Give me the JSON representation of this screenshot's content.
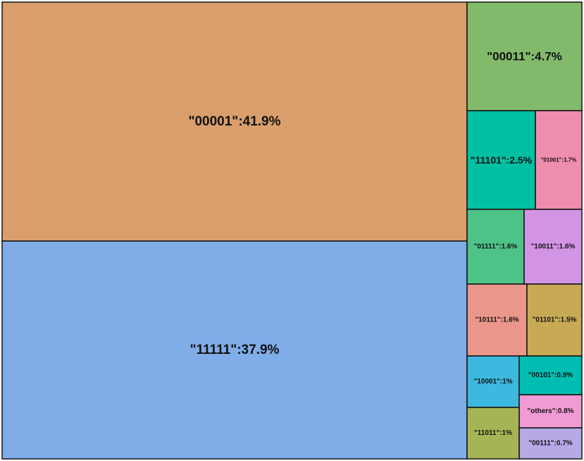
{
  "chart_data": {
    "type": "treemap",
    "items": [
      {
        "label": "\"00001\":41.9%",
        "value": 41.9,
        "color": "#D99E6C"
      },
      {
        "label": "\"11111\":37.9%",
        "value": 37.9,
        "color": "#80ACE8"
      },
      {
        "label": "\"00011\":4.7%",
        "value": 4.7,
        "color": "#82BA6C"
      },
      {
        "label": "\"11101\":2.5%",
        "value": 2.5,
        "color": "#00C0A3"
      },
      {
        "label": "\"01001\":1.7%",
        "value": 1.7,
        "color": "#EF8DAD"
      },
      {
        "label": "\"01111\":1.6%",
        "value": 1.6,
        "color": "#4DC388"
      },
      {
        "label": "\"10011\":1.6%",
        "value": 1.6,
        "color": "#D294E4"
      },
      {
        "label": "\"10111\":1.6%",
        "value": 1.6,
        "color": "#EA968A"
      },
      {
        "label": "\"01101\":1.5%",
        "value": 1.5,
        "color": "#C8AA55"
      },
      {
        "label": "\"10001\":1%",
        "value": 1.0,
        "color": "#3DB8DE"
      },
      {
        "label": "\"00101\":0.9%",
        "value": 0.9,
        "color": "#00BDB2"
      },
      {
        "label": "\"others\":0.8%",
        "value": 0.8,
        "color": "#F29AD4"
      },
      {
        "label": "\"11011\":1%",
        "value": 1.0,
        "color": "#A6B455"
      },
      {
        "label": "\"00111\":0.7%",
        "value": 0.7,
        "color": "#B7A9E6"
      }
    ]
  }
}
